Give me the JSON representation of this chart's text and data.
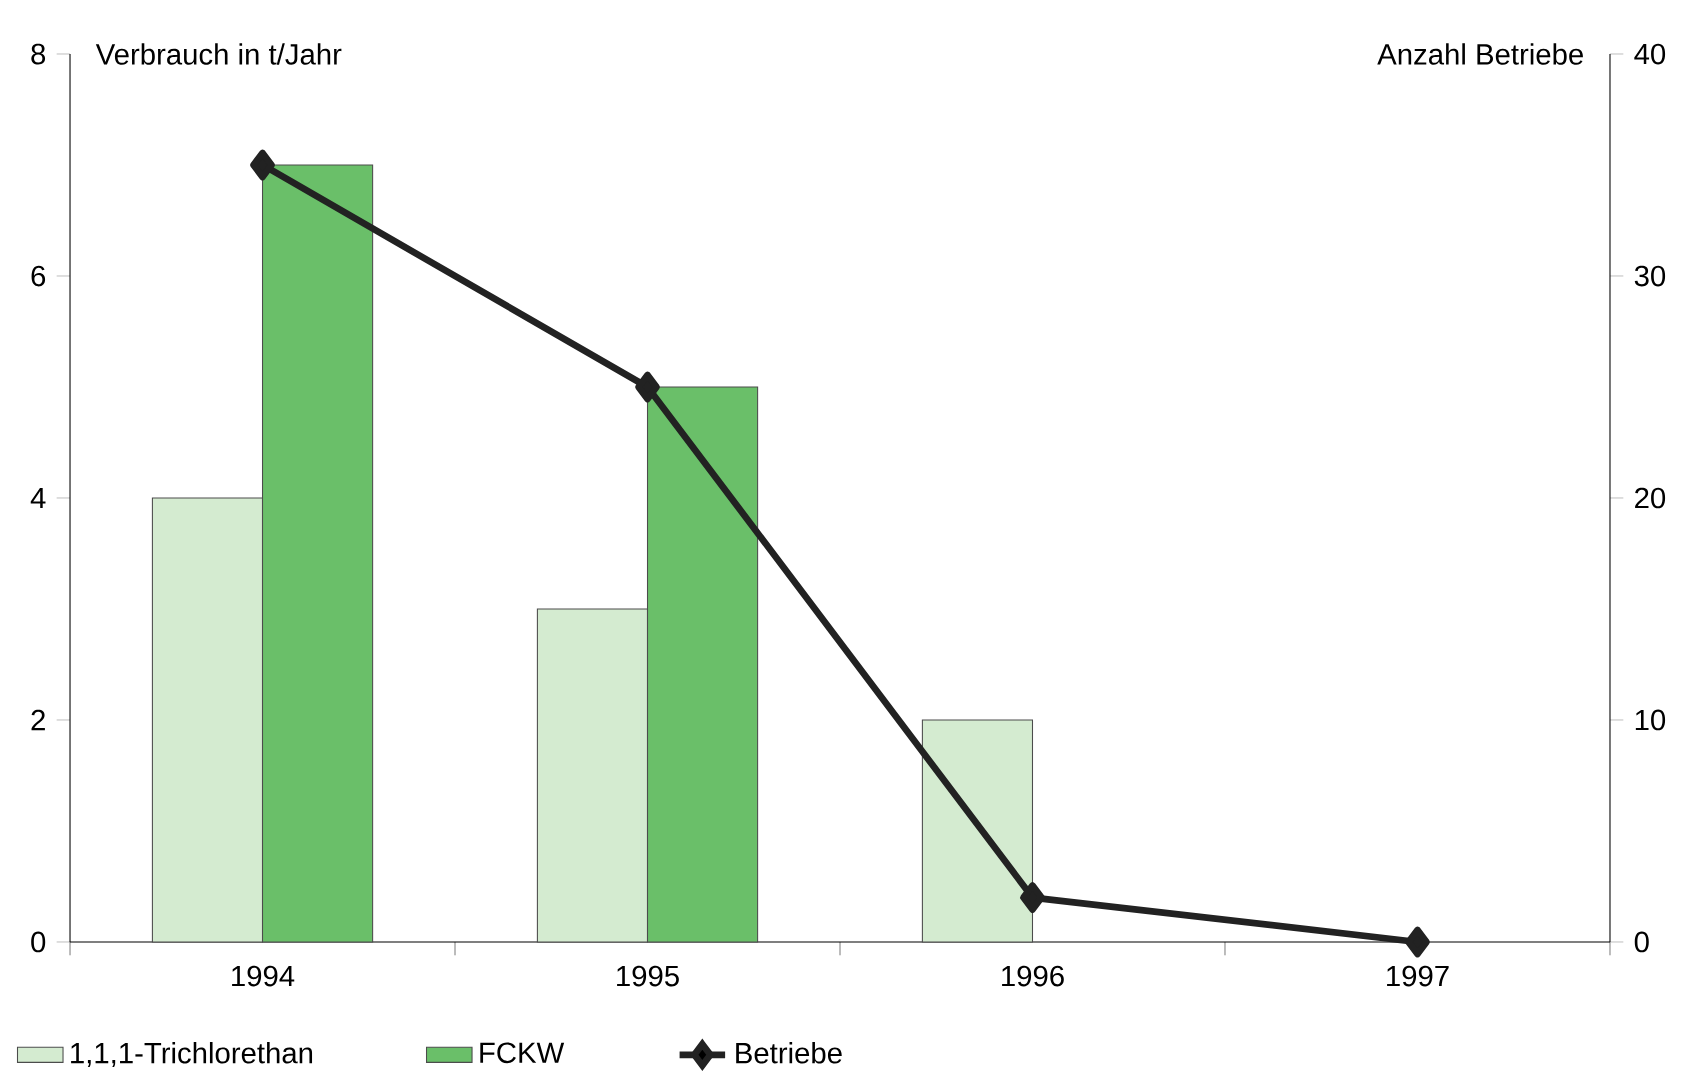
{
  "chart_data": {
    "type": "bar",
    "ylabel": "Verbrauch in t/Jahr",
    "y2label": "Anzahl Betriebe",
    "categories": [
      "1994",
      "1995",
      "1996",
      "1997"
    ],
    "ylim": [
      0,
      8
    ],
    "yticks": [
      0,
      2,
      4,
      6,
      8
    ],
    "y2lim": [
      0,
      40
    ],
    "y2ticks": [
      0,
      10,
      20,
      30,
      40
    ],
    "legend": "bottom",
    "grid": false,
    "series": [
      {
        "name": "1,1,1-Trichlorethan",
        "color": "#d4ebd0",
        "values": [
          4,
          3,
          2,
          null
        ]
      },
      {
        "name": "FCKW",
        "color": "#6abf69",
        "values": [
          7,
          5,
          null,
          null
        ]
      },
      {
        "name": "Betriebe",
        "type": "line",
        "axis": "y2",
        "color": "#222222",
        "marker": "diamond",
        "values": [
          35,
          25,
          2,
          0
        ]
      }
    ]
  }
}
